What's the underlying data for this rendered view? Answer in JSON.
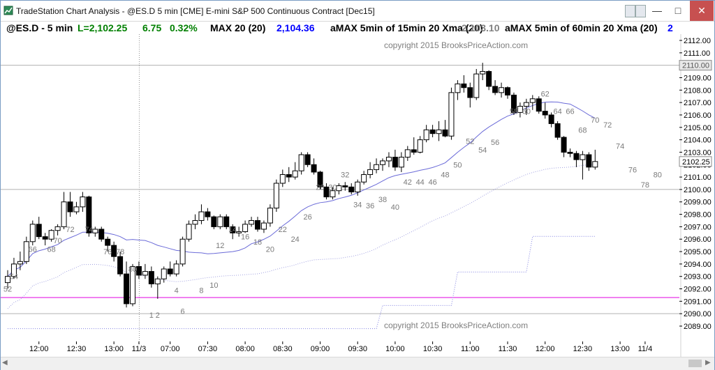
{
  "window": {
    "title": "TradeStation Chart Analysis  -  @ES.D 5 min [CME] E-mini S&P 500 Continuous Contract [Dec15]",
    "controls": {
      "minimize": "—",
      "maximize": "□",
      "close": "✕"
    }
  },
  "header": {
    "symbol": "@ES.D - 5 min",
    "last": "L=2,102.25",
    "change": "6.75",
    "pct": "0.32%",
    "ind1_name": "MAX 20 (20)",
    "ind1_value": "2,104.36",
    "ind2_name": "aMAX 5min of 15min 20 Xma (20)",
    "ind2_value": "2,103.10",
    "ind3_name": "aMAX 5min of 60min 20 Xma (20)",
    "ind3_more": "2",
    "colors": {
      "symbol": "#000000",
      "last": "#008000",
      "ind1": "#000000",
      "ind1_value": "#0000ff",
      "ind2": "#000000",
      "ind2_value": "#808080",
      "ind3": "#000000"
    }
  },
  "copyright": {
    "top": "copyright 2015 BrooksPriceAction.com",
    "bottom": "copyright 2015 BrooksPriceAction.com"
  },
  "price_tags": {
    "upper": "2110.00",
    "last": "2102.25"
  },
  "chart_data": {
    "type": "candlestick",
    "y_axis": {
      "min": 2089,
      "max": 2112,
      "ticks": [
        "2112.00",
        "2111.00",
        "2110.00",
        "2109.00",
        "2108.00",
        "2107.00",
        "2106.00",
        "2105.00",
        "2104.00",
        "2103.00",
        "2102.00",
        "2101.00",
        "2100.00",
        "2099.00",
        "2098.00",
        "2097.00",
        "2096.00",
        "2095.00",
        "2094.00",
        "2093.00",
        "2092.00",
        "2091.00",
        "2090.00",
        "2089.00"
      ]
    },
    "x_ticks": [
      {
        "label": "12:00",
        "bar": 5
      },
      {
        "label": "12:30",
        "bar": 11
      },
      {
        "label": "13:00",
        "bar": 17
      },
      {
        "label": "11/3",
        "bar": 21
      },
      {
        "label": "07:00",
        "bar": 26
      },
      {
        "label": "07:30",
        "bar": 32
      },
      {
        "label": "08:00",
        "bar": 38
      },
      {
        "label": "08:30",
        "bar": 44
      },
      {
        "label": "09:00",
        "bar": 50
      },
      {
        "label": "09:30",
        "bar": 56
      },
      {
        "label": "10:00",
        "bar": 62
      },
      {
        "label": "10:30",
        "bar": 68
      },
      {
        "label": "11:00",
        "bar": 74
      },
      {
        "label": "11:30",
        "bar": 80
      },
      {
        "label": "12:00",
        "bar": 86
      },
      {
        "label": "12:30",
        "bar": 92
      },
      {
        "label": "13:00",
        "bar": 98
      },
      {
        "label": "11/4",
        "bar": 102
      }
    ],
    "horizontal_lines": [
      {
        "name": "magenta",
        "value": 2091.3,
        "color": "#e000e0"
      },
      {
        "name": "gray-upper",
        "value": 2110.0,
        "color": "#b0b0b0"
      },
      {
        "name": "gray-lower",
        "value": 2100.0,
        "color": "#b0b0b0"
      },
      {
        "name": "gray-bottom",
        "value": 2090.0,
        "color": "#b0b0b0"
      }
    ],
    "bars": [
      [
        2092.5,
        2093.5,
        2092.0,
        2093.0
      ],
      [
        2093.0,
        2094.5,
        2092.8,
        2094.0
      ],
      [
        2094.0,
        2095.0,
        2093.5,
        2094.2
      ],
      [
        2094.2,
        2096.2,
        2094.0,
        2095.8
      ],
      [
        2095.8,
        2097.5,
        2095.5,
        2097.2
      ],
      [
        2097.2,
        2097.8,
        2096.0,
        2096.2
      ],
      [
        2096.2,
        2096.5,
        2095.5,
        2096.0
      ],
      [
        2096.0,
        2096.8,
        2095.8,
        2096.7
      ],
      [
        2096.7,
        2097.2,
        2096.3,
        2097.0
      ],
      [
        2097.0,
        2099.8,
        2096.8,
        2099.0
      ],
      [
        2099.0,
        2099.8,
        2097.8,
        2098.2
      ],
      [
        2098.2,
        2099.0,
        2098.0,
        2098.6
      ],
      [
        2098.6,
        2099.8,
        2098.2,
        2099.4
      ],
      [
        2099.4,
        2099.5,
        2096.2,
        2096.5
      ],
      [
        2096.5,
        2097.0,
        2096.2,
        2096.8
      ],
      [
        2096.8,
        2097.0,
        2095.8,
        2096.0
      ],
      [
        2096.0,
        2096.2,
        2095.0,
        2095.5
      ],
      [
        2095.5,
        2095.8,
        2094.2,
        2094.6
      ],
      [
        2094.6,
        2095.0,
        2093.0,
        2093.2
      ],
      [
        2093.2,
        2094.2,
        2090.5,
        2090.8
      ],
      [
        2090.8,
        2094.0,
        2090.6,
        2093.8
      ],
      [
        2093.8,
        2094.2,
        2092.8,
        2093.1
      ],
      [
        2093.1,
        2094.0,
        2092.8,
        2093.4
      ],
      [
        2093.4,
        2093.8,
        2092.1,
        2092.4
      ],
      [
        2092.4,
        2093.0,
        2091.2,
        2092.8
      ],
      [
        2092.8,
        2093.8,
        2092.5,
        2093.6
      ],
      [
        2093.6,
        2094.2,
        2093.0,
        2093.2
      ],
      [
        2093.2,
        2094.3,
        2093.0,
        2094.0
      ],
      [
        2094.0,
        2096.2,
        2093.8,
        2096.0
      ],
      [
        2096.0,
        2097.5,
        2095.8,
        2097.2
      ],
      [
        2097.2,
        2098.0,
        2096.8,
        2097.5
      ],
      [
        2097.5,
        2098.8,
        2097.2,
        2098.2
      ],
      [
        2098.2,
        2098.5,
        2097.5,
        2097.8
      ],
      [
        2097.8,
        2097.9,
        2096.8,
        2097.0
      ],
      [
        2097.0,
        2098.0,
        2096.8,
        2097.8
      ],
      [
        2097.8,
        2098.0,
        2096.8,
        2097.0
      ],
      [
        2097.0,
        2097.2,
        2096.0,
        2096.5
      ],
      [
        2096.5,
        2097.0,
        2096.2,
        2096.6
      ],
      [
        2096.6,
        2097.5,
        2096.5,
        2097.2
      ],
      [
        2097.2,
        2097.8,
        2097.0,
        2097.5
      ],
      [
        2097.5,
        2097.8,
        2096.6,
        2096.8
      ],
      [
        2096.8,
        2097.5,
        2096.5,
        2097.3
      ],
      [
        2097.3,
        2098.8,
        2097.0,
        2098.5
      ],
      [
        2098.5,
        2100.8,
        2098.2,
        2100.5
      ],
      [
        2100.5,
        2101.6,
        2100.2,
        2101.2
      ],
      [
        2101.2,
        2101.8,
        2100.6,
        2101.0
      ],
      [
        2101.0,
        2102.2,
        2100.8,
        2101.5
      ],
      [
        2101.5,
        2103.0,
        2101.2,
        2102.8
      ],
      [
        2102.8,
        2103.0,
        2101.8,
        2102.0
      ],
      [
        2102.0,
        2102.5,
        2101.2,
        2101.4
      ],
      [
        2101.4,
        2101.5,
        2100.0,
        2100.2
      ],
      [
        2100.2,
        2100.5,
        2099.2,
        2099.4
      ],
      [
        2099.4,
        2100.2,
        2099.2,
        2099.9
      ],
      [
        2099.9,
        2100.5,
        2099.6,
        2100.3
      ],
      [
        2100.3,
        2100.6,
        2099.9,
        2100.2
      ],
      [
        2100.2,
        2100.5,
        2099.6,
        2099.8
      ],
      [
        2099.8,
        2100.8,
        2099.5,
        2100.6
      ],
      [
        2100.6,
        2101.5,
        2100.4,
        2101.2
      ],
      [
        2101.2,
        2102.2,
        2100.9,
        2101.6
      ],
      [
        2101.6,
        2102.5,
        2101.3,
        2102.0
      ],
      [
        2102.0,
        2102.5,
        2101.5,
        2102.3
      ],
      [
        2102.3,
        2103.0,
        2101.8,
        2102.6
      ],
      [
        2102.6,
        2103.2,
        2101.5,
        2101.8
      ],
      [
        2101.8,
        2103.0,
        2101.4,
        2102.6
      ],
      [
        2102.6,
        2103.5,
        2102.3,
        2103.2
      ],
      [
        2103.2,
        2104.2,
        2102.8,
        2103.0
      ],
      [
        2103.0,
        2104.3,
        2102.9,
        2104.0
      ],
      [
        2104.0,
        2105.2,
        2103.8,
        2104.8
      ],
      [
        2104.8,
        2105.2,
        2104.2,
        2104.5
      ],
      [
        2104.5,
        2105.5,
        2103.9,
        2104.8
      ],
      [
        2104.8,
        2105.6,
        2104.2,
        2104.3
      ],
      [
        2104.3,
        2108.2,
        2104.0,
        2107.8
      ],
      [
        2107.8,
        2108.8,
        2107.2,
        2108.5
      ],
      [
        2108.5,
        2109.2,
        2107.8,
        2108.2
      ],
      [
        2108.2,
        2108.6,
        2106.6,
        2107.4
      ],
      [
        2107.4,
        2109.7,
        2107.2,
        2109.3
      ],
      [
        2109.3,
        2110.2,
        2108.8,
        2109.5
      ],
      [
        2109.5,
        2109.6,
        2108.0,
        2108.3
      ],
      [
        2108.3,
        2108.8,
        2107.6,
        2107.8
      ],
      [
        2107.8,
        2108.6,
        2107.4,
        2108.2
      ],
      [
        2108.2,
        2108.3,
        2107.3,
        2107.6
      ],
      [
        2107.6,
        2107.8,
        2106.0,
        2106.2
      ],
      [
        2106.2,
        2107.0,
        2105.8,
        2106.7
      ],
      [
        2106.7,
        2107.3,
        2106.0,
        2107.0
      ],
      [
        2107.0,
        2107.6,
        2106.4,
        2107.3
      ],
      [
        2107.3,
        2107.5,
        2106.1,
        2106.3
      ],
      [
        2106.3,
        2107.0,
        2105.7,
        2106.0
      ],
      [
        2106.0,
        2106.2,
        2105.0,
        2105.3
      ],
      [
        2105.3,
        2105.5,
        2104.0,
        2104.2
      ],
      [
        2104.2,
        2104.3,
        2102.6,
        2103.0
      ],
      [
        2103.0,
        2103.3,
        2102.6,
        2102.9
      ],
      [
        2102.9,
        2103.1,
        2101.8,
        2102.4
      ],
      [
        2102.4,
        2103.1,
        2100.8,
        2102.8
      ],
      [
        2102.8,
        2103.0,
        2101.5,
        2101.8
      ],
      [
        2101.8,
        2103.2,
        2101.6,
        2102.25
      ]
    ],
    "bar_labels": [
      {
        "text": "52",
        "bar": 0,
        "price": 2092.0
      },
      {
        "text": "54",
        "bar": 1,
        "price": 2093.0
      },
      {
        "text": "66",
        "bar": 4,
        "price": 2095.2
      },
      {
        "text": "68",
        "bar": 7,
        "price": 2095.2
      },
      {
        "text": "70",
        "bar": 8,
        "price": 2095.9
      },
      {
        "text": "72",
        "bar": 10,
        "price": 2096.8
      },
      {
        "text": "74",
        "bar": 13,
        "price": 2096.8
      },
      {
        "text": "76",
        "bar": 16,
        "price": 2095.0
      },
      {
        "text": "78",
        "bar": 18,
        "price": 2095.0
      },
      {
        "text": "80",
        "bar": 20,
        "price": 2093.6
      },
      {
        "text": "1",
        "bar": 23,
        "price": 2089.9
      },
      {
        "text": "2",
        "bar": 24,
        "price": 2089.9
      },
      {
        "text": "4",
        "bar": 27,
        "price": 2091.9
      },
      {
        "text": "6",
        "bar": 28,
        "price": 2090.2
      },
      {
        "text": "8",
        "bar": 31,
        "price": 2091.9
      },
      {
        "text": "10",
        "bar": 33,
        "price": 2092.3
      },
      {
        "text": "12",
        "bar": 34,
        "price": 2095.5
      },
      {
        "text": "14",
        "bar": 36,
        "price": 2096.8
      },
      {
        "text": "16",
        "bar": 38,
        "price": 2096.2
      },
      {
        "text": "18",
        "bar": 40,
        "price": 2095.8
      },
      {
        "text": "20",
        "bar": 42,
        "price": 2095.2
      },
      {
        "text": "22",
        "bar": 44,
        "price": 2096.8
      },
      {
        "text": "24",
        "bar": 46,
        "price": 2096.0
      },
      {
        "text": "26",
        "bar": 48,
        "price": 2097.8
      },
      {
        "text": "28",
        "bar": 50,
        "price": 2100.2
      },
      {
        "text": "30",
        "bar": 52,
        "price": 2100.2
      },
      {
        "text": "32",
        "bar": 54,
        "price": 2101.2
      },
      {
        "text": "34",
        "bar": 56,
        "price": 2098.8
      },
      {
        "text": "36",
        "bar": 58,
        "price": 2098.7
      },
      {
        "text": "38",
        "bar": 60,
        "price": 2099.2
      },
      {
        "text": "40",
        "bar": 62,
        "price": 2098.6
      },
      {
        "text": "42",
        "bar": 64,
        "price": 2100.6
      },
      {
        "text": "44",
        "bar": 66,
        "price": 2100.6
      },
      {
        "text": "46",
        "bar": 68,
        "price": 2100.6
      },
      {
        "text": "48",
        "bar": 70,
        "price": 2101.2
      },
      {
        "text": "50",
        "bar": 72,
        "price": 2102.0
      },
      {
        "text": "52",
        "bar": 74,
        "price": 2103.9
      },
      {
        "text": "54",
        "bar": 76,
        "price": 2103.2
      },
      {
        "text": "56",
        "bar": 78,
        "price": 2103.8
      },
      {
        "text": "58",
        "bar": 81,
        "price": 2106.3
      },
      {
        "text": "60",
        "bar": 83,
        "price": 2106.3
      },
      {
        "text": "62",
        "bar": 86,
        "price": 2107.7
      },
      {
        "text": "64",
        "bar": 88,
        "price": 2106.3
      },
      {
        "text": "66",
        "bar": 90,
        "price": 2106.3
      },
      {
        "text": "68",
        "bar": 92,
        "price": 2104.8
      },
      {
        "text": "70",
        "bar": 94,
        "price": 2105.6
      },
      {
        "text": "72",
        "bar": 96,
        "price": 2105.2
      },
      {
        "text": "74",
        "bar": 98,
        "price": 2103.5
      },
      {
        "text": "76",
        "bar": 100,
        "price": 2101.6
      },
      {
        "text": "78",
        "bar": 102,
        "price": 2100.4
      },
      {
        "text": "80",
        "bar": 104,
        "price": 2101.2
      }
    ],
    "colors": {
      "up_body": "#ffffff",
      "down_body": "#000000",
      "wick": "#000000",
      "ma_line": "#6a6ad8",
      "dotted": "#a0a0e0",
      "dotted2": "#8080e0",
      "axis_text": "#000000",
      "label_text": "#7a7a7a"
    }
  }
}
